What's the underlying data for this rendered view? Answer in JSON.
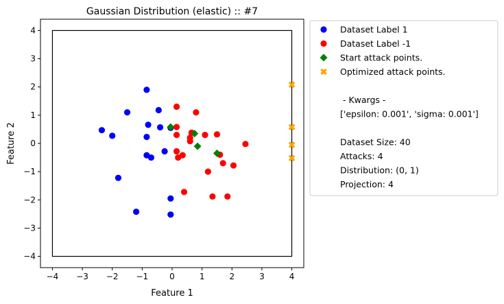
{
  "chart_data": {
    "type": "scatter",
    "title": "Gaussian Distribution (elastic) :: #7",
    "xlabel": "Feature 1",
    "ylabel": "Feature 2",
    "xlim": [
      -4.4,
      4.4
    ],
    "ylim": [
      -4.4,
      4.4
    ],
    "xticks": [
      -4,
      -3,
      -2,
      -1,
      0,
      1,
      2,
      3,
      4
    ],
    "yticks": [
      -4,
      -3,
      -2,
      -1,
      0,
      1,
      2,
      3,
      4
    ],
    "grid": false,
    "legend_position": "outside-right",
    "boundary_box": {
      "x": [
        -4,
        4
      ],
      "y": [
        -4,
        4
      ]
    },
    "series": [
      {
        "name": "Dataset Label 1",
        "marker": "circle",
        "color": "#0000ff",
        "points": [
          [
            -0.85,
            1.9
          ],
          [
            -1.5,
            1.1
          ],
          [
            -0.45,
            1.18
          ],
          [
            -2.35,
            0.47
          ],
          [
            -2.0,
            0.27
          ],
          [
            -0.8,
            0.66
          ],
          [
            -0.4,
            0.57
          ],
          [
            -0.05,
            0.55
          ],
          [
            -0.85,
            0.23
          ],
          [
            -0.25,
            -0.28
          ],
          [
            -0.85,
            -0.42
          ],
          [
            -0.7,
            -0.5
          ],
          [
            -1.8,
            -1.22
          ],
          [
            -0.05,
            -1.95
          ],
          [
            -1.2,
            -2.42
          ],
          [
            -0.05,
            -2.52
          ]
        ]
      },
      {
        "name": "Dataset Label -1",
        "marker": "circle",
        "color": "#ff0000",
        "points": [
          [
            0.15,
            1.3
          ],
          [
            0.8,
            1.1
          ],
          [
            0.15,
            0.58
          ],
          [
            0.65,
            0.38
          ],
          [
            0.15,
            0.3
          ],
          [
            1.1,
            0.3
          ],
          [
            1.5,
            0.32
          ],
          [
            0.6,
            0.2
          ],
          [
            0.6,
            0.08
          ],
          [
            2.45,
            -0.02
          ],
          [
            0.15,
            -0.28
          ],
          [
            0.35,
            -0.42
          ],
          [
            0.2,
            -0.5
          ],
          [
            1.6,
            -0.4
          ],
          [
            1.7,
            -0.7
          ],
          [
            2.05,
            -0.78
          ],
          [
            1.2,
            -1.0
          ],
          [
            0.4,
            -1.72
          ],
          [
            1.35,
            -1.88
          ],
          [
            1.85,
            -1.88
          ]
        ]
      },
      {
        "name": "Start attack points.",
        "marker": "diamond",
        "color": "#008000",
        "points": [
          [
            -0.05,
            0.58
          ],
          [
            0.75,
            0.35
          ],
          [
            0.85,
            -0.1
          ],
          [
            1.5,
            -0.35
          ]
        ]
      },
      {
        "name": "Optimized attack points.",
        "marker": "x",
        "color": "#ffa500",
        "points": [
          [
            4.0,
            2.08
          ],
          [
            4.0,
            0.58
          ],
          [
            4.0,
            -0.05
          ],
          [
            4.0,
            -0.52
          ]
        ]
      }
    ],
    "legend_info": [
      "",
      " - Kwargs -",
      "['epsilon: 0.001', 'sigma: 0.001']",
      "",
      "Dataset Size: 40",
      "Attacks: 4",
      "Distribution: (0, 1)",
      "Projection: 4"
    ]
  }
}
